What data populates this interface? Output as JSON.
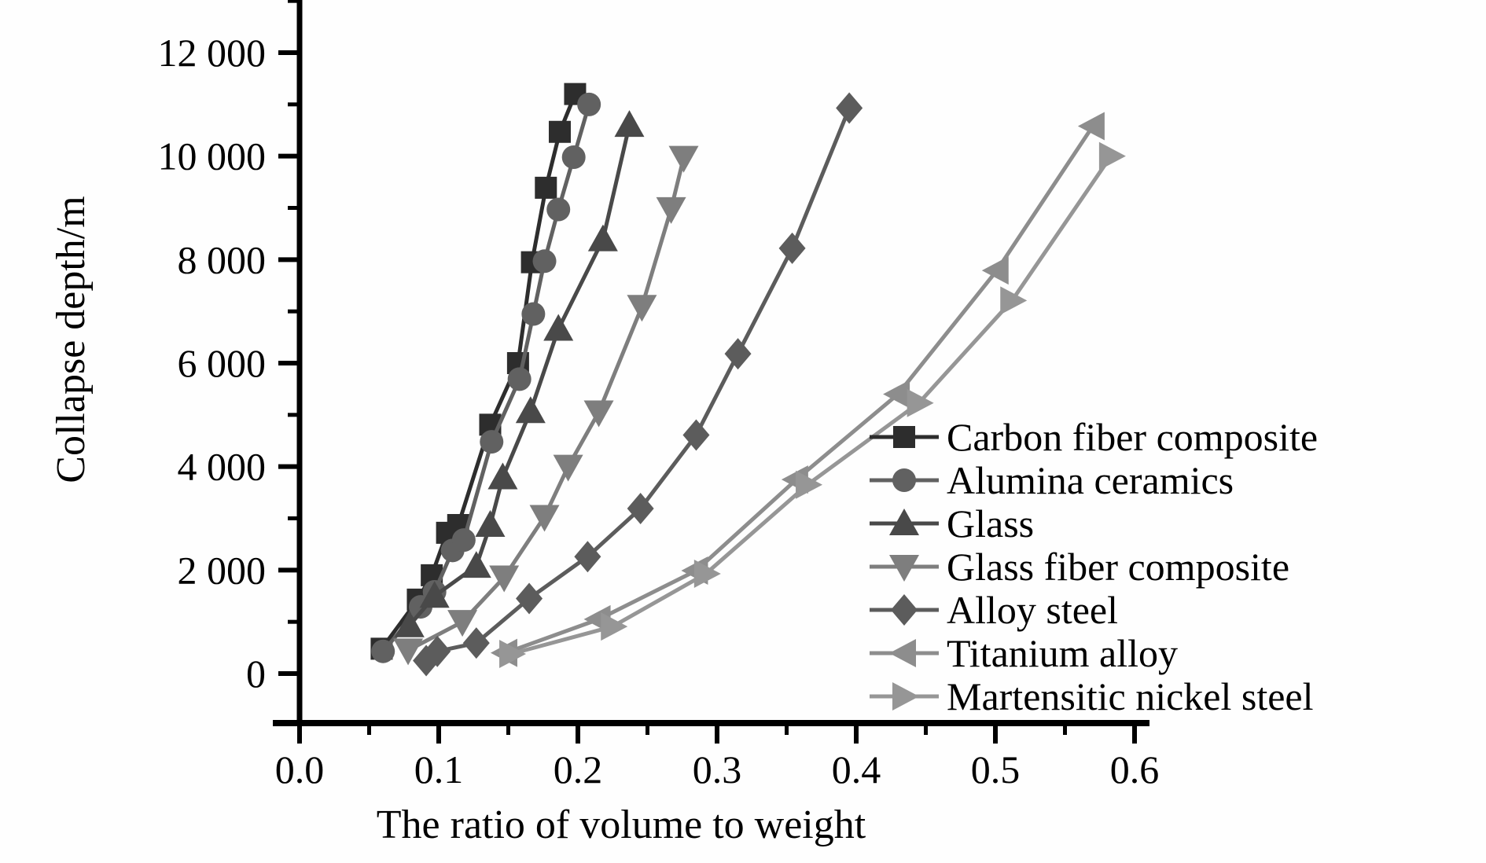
{
  "figure": {
    "background": "#fefefe",
    "axis_color": "#000000",
    "text_color": "#000000"
  },
  "chart_data": {
    "type": "line",
    "title": "",
    "xlabel": "The ratio of volume to weight",
    "ylabel": "Collapse depth/m",
    "xlim": [
      0.0,
      0.61
    ],
    "ylim": [
      0,
      12900
    ],
    "grid": false,
    "legend_position": "lower right",
    "axes": {
      "x": {
        "major": [
          0.0,
          0.1,
          0.2,
          0.3,
          0.4,
          0.5,
          0.6
        ],
        "labels": [
          "0.0",
          "0.1",
          "0.2",
          "0.3",
          "0.4",
          "0.5",
          "0.6"
        ],
        "minor": [
          0.05,
          0.15,
          0.25,
          0.35,
          0.45,
          0.55
        ]
      },
      "y": {
        "major": [
          0,
          2000,
          4000,
          6000,
          8000,
          10000,
          12000
        ],
        "labels": [
          "0",
          "2 000",
          "4 000",
          "6 000",
          "8 000",
          "10 000",
          "12 000"
        ],
        "minor": [
          1000,
          3000,
          5000,
          7000,
          9000,
          11000,
          13000
        ]
      }
    },
    "series": [
      {
        "name": "Carbon fiber composite",
        "marker": "square",
        "color": "#2d2d2d",
        "points": [
          [
            0.059,
            480
          ],
          [
            0.085,
            1430
          ],
          [
            0.095,
            1900
          ],
          [
            0.106,
            2720
          ],
          [
            0.114,
            2870
          ],
          [
            0.137,
            4810
          ],
          [
            0.157,
            6000
          ],
          [
            0.167,
            7950
          ],
          [
            0.177,
            9390
          ],
          [
            0.187,
            10470
          ],
          [
            0.198,
            11200
          ]
        ]
      },
      {
        "name": "Alumina ceramics",
        "marker": "circle",
        "color": "#616161",
        "points": [
          [
            0.06,
            430
          ],
          [
            0.087,
            1290
          ],
          [
            0.097,
            1580
          ],
          [
            0.11,
            2380
          ],
          [
            0.118,
            2580
          ],
          [
            0.138,
            4480
          ],
          [
            0.158,
            5690
          ],
          [
            0.168,
            6950
          ],
          [
            0.176,
            7970
          ],
          [
            0.186,
            8970
          ],
          [
            0.197,
            9980
          ],
          [
            0.208,
            11000
          ]
        ]
      },
      {
        "name": "Glass",
        "marker": "triangle_up",
        "color": "#494949",
        "points": [
          [
            0.079,
            930
          ],
          [
            0.097,
            1500
          ],
          [
            0.127,
            2080
          ],
          [
            0.137,
            2870
          ],
          [
            0.146,
            3790
          ],
          [
            0.166,
            5070
          ],
          [
            0.186,
            6660
          ],
          [
            0.218,
            8390
          ],
          [
            0.237,
            10600
          ]
        ]
      },
      {
        "name": "Glass fiber composite",
        "marker": "triangle_down",
        "color": "#7e7e7e",
        "points": [
          [
            0.078,
            450
          ],
          [
            0.117,
            1000
          ],
          [
            0.147,
            1860
          ],
          [
            0.176,
            3030
          ],
          [
            0.193,
            4000
          ],
          [
            0.215,
            5050
          ],
          [
            0.246,
            7090
          ],
          [
            0.267,
            8980
          ],
          [
            0.276,
            9970
          ]
        ]
      },
      {
        "name": "Alloy steel",
        "marker": "diamond",
        "color": "#5c5c5c",
        "points": [
          [
            0.091,
            250
          ],
          [
            0.099,
            430
          ],
          [
            0.127,
            590
          ],
          [
            0.165,
            1450
          ],
          [
            0.207,
            2260
          ],
          [
            0.245,
            3190
          ],
          [
            0.285,
            4610
          ],
          [
            0.315,
            6180
          ],
          [
            0.354,
            8220
          ],
          [
            0.395,
            10930
          ]
        ]
      },
      {
        "name": "Titanium alloy",
        "marker": "triangle_left",
        "color": "#8d8d8d",
        "points": [
          [
            0.148,
            400
          ],
          [
            0.215,
            1050
          ],
          [
            0.285,
            1990
          ],
          [
            0.357,
            3750
          ],
          [
            0.43,
            5400
          ],
          [
            0.501,
            7790
          ],
          [
            0.57,
            10580
          ]
        ]
      },
      {
        "name": "Martensitic nickel steel",
        "marker": "triangle_right",
        "color": "#969696",
        "points": [
          [
            0.152,
            380
          ],
          [
            0.225,
            910
          ],
          [
            0.292,
            1930
          ],
          [
            0.365,
            3650
          ],
          [
            0.445,
            5230
          ],
          [
            0.512,
            7210
          ],
          [
            0.583,
            10000
          ]
        ]
      }
    ]
  }
}
